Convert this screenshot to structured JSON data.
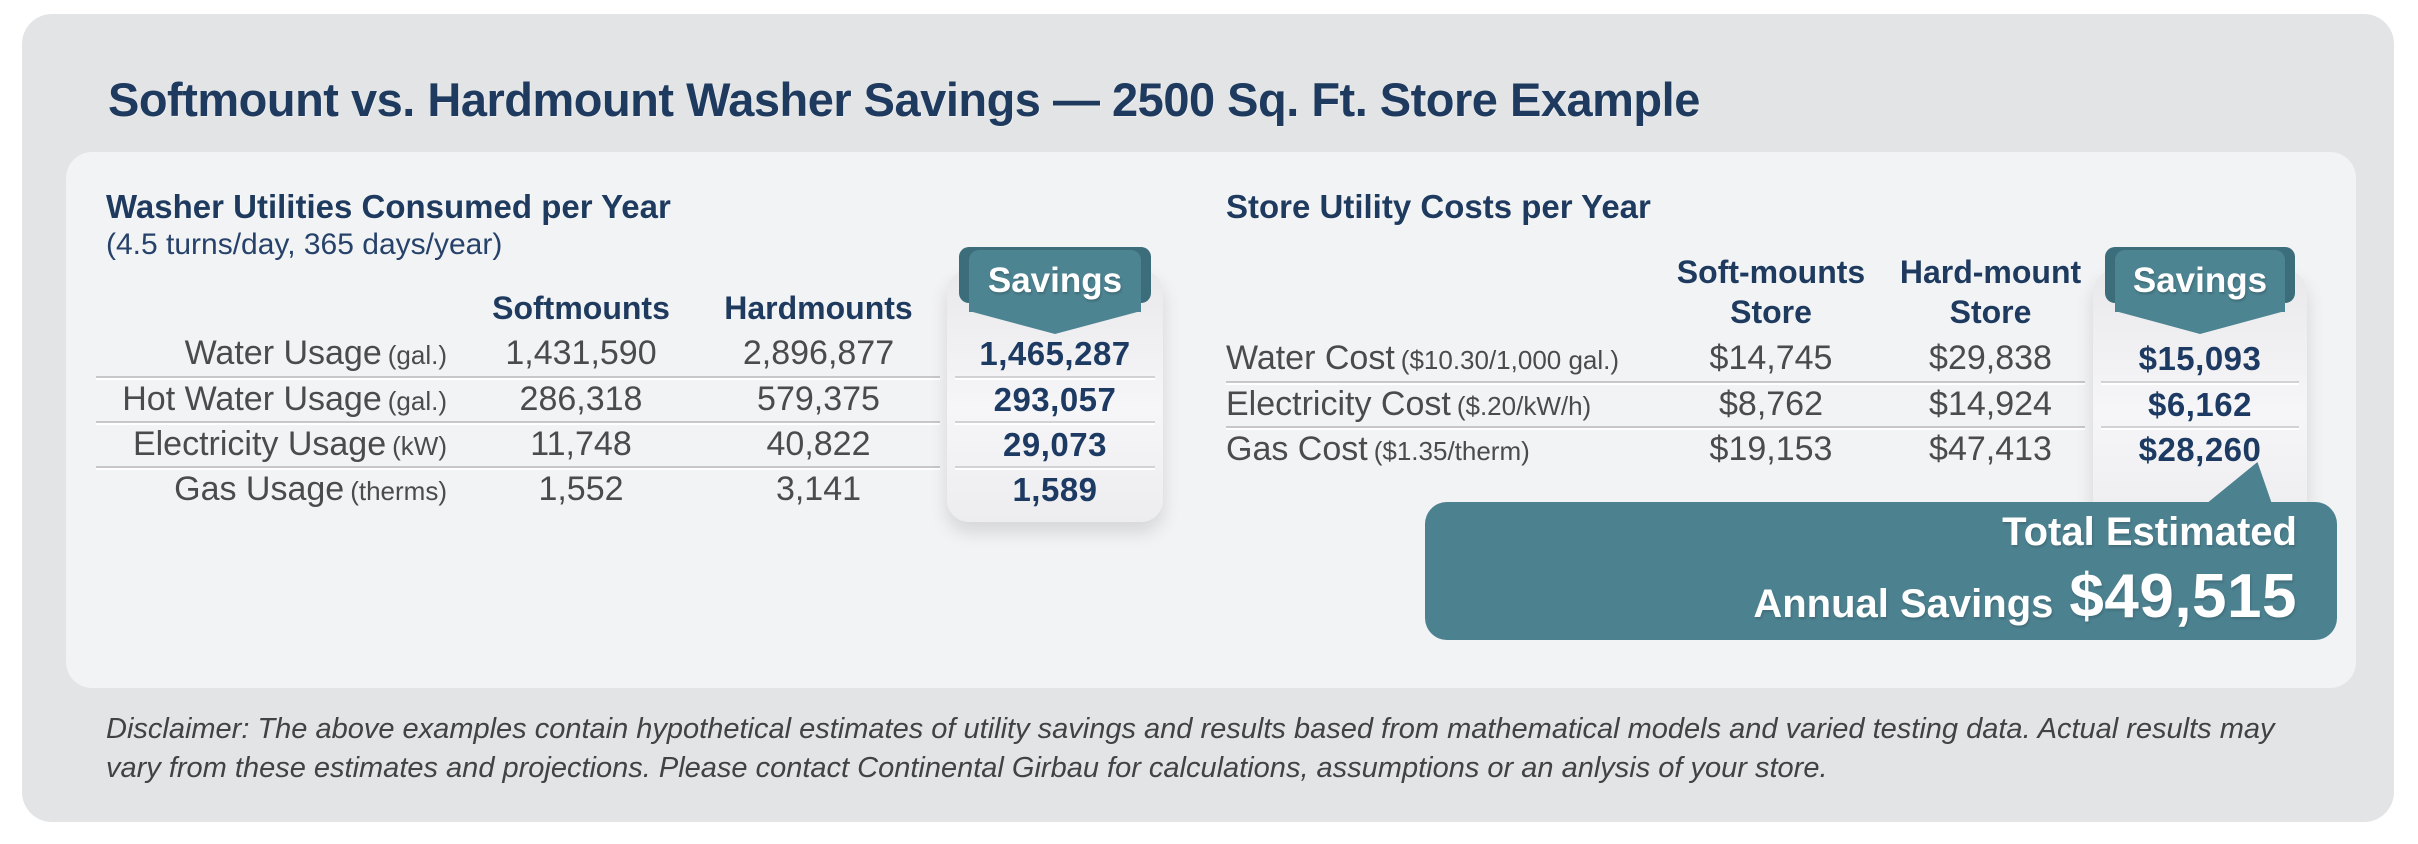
{
  "title": "Softmount vs. Hardmount Washer Savings — 2500 Sq. Ft. Store Example",
  "left_table": {
    "header": "Washer Utilities Consumed per Year",
    "subheader": "(4.5 turns/day, 365 days/year)",
    "columns": {
      "softmounts": "Softmounts",
      "hardmounts": "Hardmounts",
      "savings": "Savings"
    },
    "rows": [
      {
        "label": "Water Usage",
        "unit": "(gal.)",
        "softmounts": "1,431,590",
        "hardmounts": "2,896,877",
        "savings": "1,465,287"
      },
      {
        "label": "Hot Water Usage",
        "unit": "(gal.)",
        "softmounts": "286,318",
        "hardmounts": "579,375",
        "savings": "293,057"
      },
      {
        "label": "Electricity Usage",
        "unit": "(kW)",
        "softmounts": "11,748",
        "hardmounts": "40,822",
        "savings": "29,073"
      },
      {
        "label": "Gas Usage",
        "unit": "(therms)",
        "softmounts": "1,552",
        "hardmounts": "3,141",
        "savings": "1,589"
      }
    ]
  },
  "right_table": {
    "header": "Store Utility Costs per Year",
    "columns": {
      "soft_line1": "Soft-mounts",
      "soft_line2": "Store",
      "hard_line1": "Hard-mount",
      "hard_line2": "Store",
      "savings": "Savings"
    },
    "rows": [
      {
        "label": "Water Cost",
        "unit": "($10.30/1,000 gal.)",
        "soft": "$14,745",
        "hard": "$29,838",
        "savings": "$15,093"
      },
      {
        "label": "Electricity Cost",
        "unit": "($.20/kW/h)",
        "soft": "$8,762",
        "hard": "$14,924",
        "savings": "$6,162"
      },
      {
        "label": "Gas Cost",
        "unit": "($1.35/therm)",
        "soft": "$19,153",
        "hard": "$47,413",
        "savings": "$28,260"
      }
    ]
  },
  "total": {
    "line1": "Total Estimated",
    "line2_label": "Annual Savings",
    "amount": "$49,515"
  },
  "disclaimer": "Disclaimer: The above examples contain hypothetical estimates of utility savings and results based from mathematical models and varied testing data. Actual results may vary from these estimates and projections. Please contact Continental Girbau for calculations, assumptions or an anlysis of your store.",
  "colors": {
    "navy": "#1e3a5e",
    "teal": "#4c8190",
    "teal_dark": "#3b6d7b",
    "panel": "#f2f3f4",
    "outer": "#e3e4e6"
  }
}
